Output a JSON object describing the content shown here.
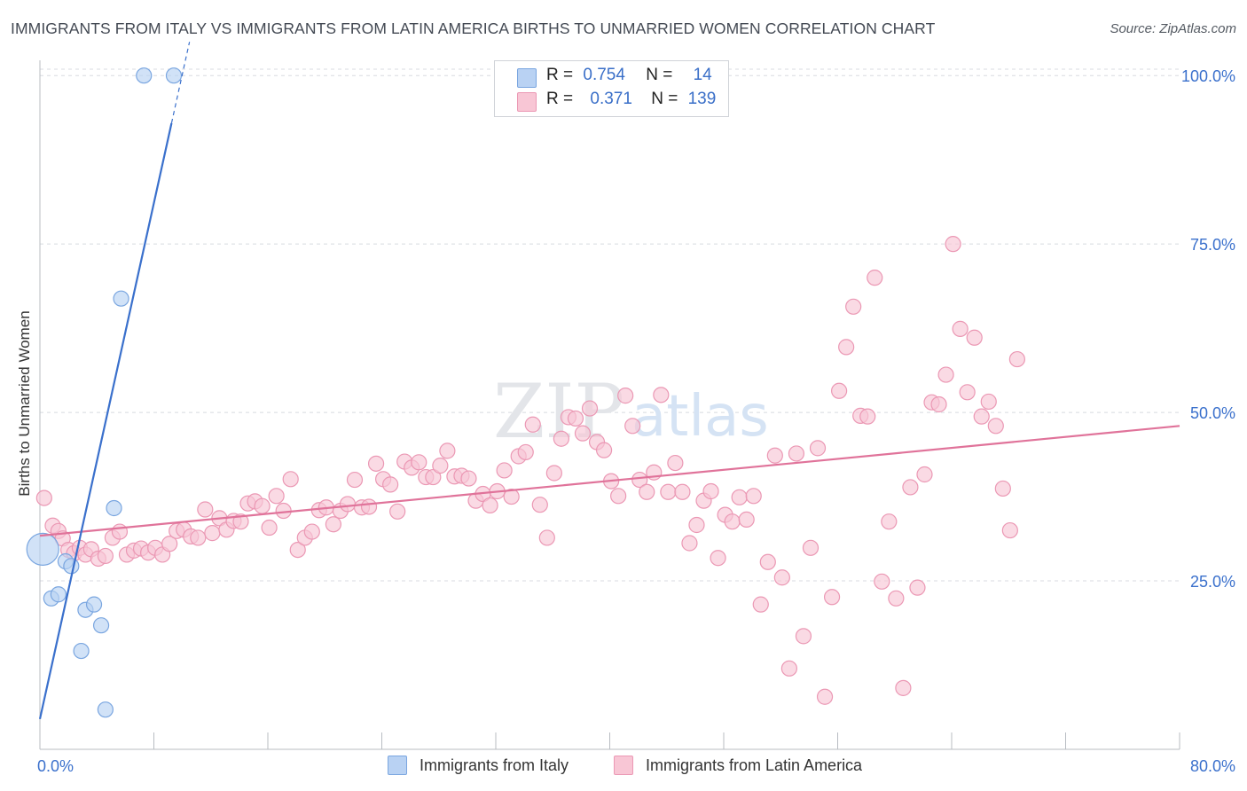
{
  "title": "IMMIGRANTS FROM ITALY VS IMMIGRANTS FROM LATIN AMERICA BIRTHS TO UNMARRIED WOMEN CORRELATION CHART",
  "source": "Source: ZipAtlas.com",
  "watermark": {
    "zip": "ZIP",
    "atlas": "atlas"
  },
  "legend": {
    "r_label": "R =",
    "n_label": "N =",
    "italy": {
      "r": "0.754",
      "n": "14",
      "name": "Immigrants from Italy"
    },
    "latin": {
      "r": "0.371",
      "n": "139",
      "name": "Immigrants from Latin America"
    }
  },
  "colors": {
    "italy_fill": "#b9d2f3",
    "italy_stroke": "#7aa6e0",
    "italy_line": "#3a70cc",
    "latin_fill": "#f8c6d5",
    "latin_stroke": "#eb98b4",
    "latin_line": "#e0739a",
    "axis_label": "#3a70cc",
    "grid": "#d8dbe0"
  },
  "chart_data": {
    "type": "scatter",
    "title": "IMMIGRANTS FROM ITALY VS IMMIGRANTS FROM LATIN AMERICA BIRTHS TO UNMARRIED WOMEN CORRELATION CHART",
    "xlabel": "",
    "ylabel": "Births to Unmarried Women",
    "xlim": [
      0,
      80
    ],
    "ylim": [
      0,
      102
    ],
    "x_tick_labels": [
      "0.0%",
      "80.0%"
    ],
    "y_ticks": [
      25,
      50,
      75,
      100
    ],
    "y_tick_labels": [
      "25.0%",
      "50.0%",
      "75.0%",
      "100.0%"
    ],
    "grid": true,
    "legend_position": "top-center",
    "series": [
      {
        "name": "Immigrants from Italy",
        "r": 0.754,
        "n": 14,
        "trend": {
          "x": [
            0,
            10.5
          ],
          "y": [
            4.5,
            105
          ]
        },
        "points": [
          {
            "x": 0.2,
            "y": 29.7,
            "big": true
          },
          {
            "x": 0.8,
            "y": 22.4
          },
          {
            "x": 1.3,
            "y": 23.0
          },
          {
            "x": 1.8,
            "y": 27.9
          },
          {
            "x": 2.2,
            "y": 27.2
          },
          {
            "x": 2.9,
            "y": 14.6
          },
          {
            "x": 3.2,
            "y": 20.7
          },
          {
            "x": 3.8,
            "y": 21.5
          },
          {
            "x": 4.3,
            "y": 18.4
          },
          {
            "x": 4.6,
            "y": 5.9
          },
          {
            "x": 5.2,
            "y": 35.8
          },
          {
            "x": 5.7,
            "y": 66.9
          },
          {
            "x": 7.3,
            "y": 100
          },
          {
            "x": 9.4,
            "y": 100
          }
        ]
      },
      {
        "name": "Immigrants from Latin America",
        "r": 0.371,
        "n": 139,
        "trend": {
          "x": [
            0,
            80
          ],
          "y": [
            31.7,
            48.0
          ]
        },
        "points": [
          {
            "x": 0.3,
            "y": 37.3
          },
          {
            "x": 0.9,
            "y": 33.2
          },
          {
            "x": 1.3,
            "y": 32.4
          },
          {
            "x": 1.6,
            "y": 31.3
          },
          {
            "x": 2.0,
            "y": 29.6
          },
          {
            "x": 2.4,
            "y": 29.1
          },
          {
            "x": 2.8,
            "y": 29.9
          },
          {
            "x": 3.2,
            "y": 28.9
          },
          {
            "x": 3.6,
            "y": 29.7
          },
          {
            "x": 4.1,
            "y": 28.3
          },
          {
            "x": 4.6,
            "y": 28.7
          },
          {
            "x": 5.1,
            "y": 31.4
          },
          {
            "x": 5.6,
            "y": 32.3
          },
          {
            "x": 6.1,
            "y": 28.9
          },
          {
            "x": 6.6,
            "y": 29.5
          },
          {
            "x": 7.1,
            "y": 29.8
          },
          {
            "x": 7.6,
            "y": 29.2
          },
          {
            "x": 8.1,
            "y": 29.9
          },
          {
            "x": 8.6,
            "y": 28.9
          },
          {
            "x": 9.1,
            "y": 30.5
          },
          {
            "x": 9.6,
            "y": 32.4
          },
          {
            "x": 10.1,
            "y": 32.6
          },
          {
            "x": 10.6,
            "y": 31.6
          },
          {
            "x": 11.1,
            "y": 31.4
          },
          {
            "x": 11.6,
            "y": 35.6
          },
          {
            "x": 12.1,
            "y": 32.1
          },
          {
            "x": 12.6,
            "y": 34.3
          },
          {
            "x": 13.1,
            "y": 32.6
          },
          {
            "x": 13.6,
            "y": 33.9
          },
          {
            "x": 14.1,
            "y": 33.8
          },
          {
            "x": 14.6,
            "y": 36.5
          },
          {
            "x": 15.1,
            "y": 36.8
          },
          {
            "x": 15.6,
            "y": 36.1
          },
          {
            "x": 16.1,
            "y": 32.9
          },
          {
            "x": 16.6,
            "y": 37.6
          },
          {
            "x": 17.1,
            "y": 35.4
          },
          {
            "x": 17.6,
            "y": 40.1
          },
          {
            "x": 18.1,
            "y": 29.6
          },
          {
            "x": 18.6,
            "y": 31.4
          },
          {
            "x": 19.1,
            "y": 32.3
          },
          {
            "x": 19.6,
            "y": 35.5
          },
          {
            "x": 20.1,
            "y": 35.9
          },
          {
            "x": 20.6,
            "y": 33.4
          },
          {
            "x": 21.1,
            "y": 35.4
          },
          {
            "x": 21.6,
            "y": 36.4
          },
          {
            "x": 22.1,
            "y": 40.0
          },
          {
            "x": 22.6,
            "y": 35.9
          },
          {
            "x": 23.1,
            "y": 36.0
          },
          {
            "x": 23.6,
            "y": 42.4
          },
          {
            "x": 24.1,
            "y": 40.1
          },
          {
            "x": 24.6,
            "y": 39.3
          },
          {
            "x": 25.1,
            "y": 35.3
          },
          {
            "x": 25.6,
            "y": 42.7
          },
          {
            "x": 26.1,
            "y": 41.8
          },
          {
            "x": 26.6,
            "y": 42.6
          },
          {
            "x": 27.1,
            "y": 40.4
          },
          {
            "x": 27.6,
            "y": 40.4
          },
          {
            "x": 28.1,
            "y": 42.1
          },
          {
            "x": 28.6,
            "y": 44.3
          },
          {
            "x": 29.1,
            "y": 40.5
          },
          {
            "x": 29.6,
            "y": 40.6
          },
          {
            "x": 30.1,
            "y": 40.2
          },
          {
            "x": 30.6,
            "y": 36.9
          },
          {
            "x": 31.1,
            "y": 37.9
          },
          {
            "x": 31.6,
            "y": 36.2
          },
          {
            "x": 32.1,
            "y": 38.3
          },
          {
            "x": 32.6,
            "y": 41.4
          },
          {
            "x": 33.1,
            "y": 37.5
          },
          {
            "x": 33.6,
            "y": 43.5
          },
          {
            "x": 34.1,
            "y": 44.1
          },
          {
            "x": 34.6,
            "y": 48.2
          },
          {
            "x": 35.1,
            "y": 36.3
          },
          {
            "x": 35.6,
            "y": 31.4
          },
          {
            "x": 36.1,
            "y": 41.0
          },
          {
            "x": 36.6,
            "y": 46.1
          },
          {
            "x": 37.1,
            "y": 49.3
          },
          {
            "x": 37.6,
            "y": 49.1
          },
          {
            "x": 38.1,
            "y": 46.9
          },
          {
            "x": 38.6,
            "y": 50.6
          },
          {
            "x": 39.1,
            "y": 45.6
          },
          {
            "x": 39.6,
            "y": 44.4
          },
          {
            "x": 40.1,
            "y": 39.8
          },
          {
            "x": 40.6,
            "y": 37.6
          },
          {
            "x": 41.1,
            "y": 52.5
          },
          {
            "x": 41.6,
            "y": 48.0
          },
          {
            "x": 42.1,
            "y": 40.0
          },
          {
            "x": 42.6,
            "y": 38.2
          },
          {
            "x": 43.1,
            "y": 41.1
          },
          {
            "x": 43.6,
            "y": 52.6
          },
          {
            "x": 44.1,
            "y": 38.2
          },
          {
            "x": 44.6,
            "y": 42.5
          },
          {
            "x": 45.1,
            "y": 38.2
          },
          {
            "x": 45.6,
            "y": 30.6
          },
          {
            "x": 46.1,
            "y": 33.3
          },
          {
            "x": 46.6,
            "y": 36.9
          },
          {
            "x": 47.1,
            "y": 38.3
          },
          {
            "x": 47.6,
            "y": 28.4
          },
          {
            "x": 48.1,
            "y": 34.8
          },
          {
            "x": 48.6,
            "y": 33.8
          },
          {
            "x": 49.1,
            "y": 37.4
          },
          {
            "x": 49.6,
            "y": 34.1
          },
          {
            "x": 50.1,
            "y": 37.6
          },
          {
            "x": 50.6,
            "y": 21.5
          },
          {
            "x": 51.1,
            "y": 27.8
          },
          {
            "x": 51.6,
            "y": 43.6
          },
          {
            "x": 52.1,
            "y": 25.5
          },
          {
            "x": 52.6,
            "y": 12.0
          },
          {
            "x": 53.1,
            "y": 43.9
          },
          {
            "x": 53.6,
            "y": 16.8
          },
          {
            "x": 54.1,
            "y": 29.9
          },
          {
            "x": 54.6,
            "y": 44.7
          },
          {
            "x": 55.1,
            "y": 7.8
          },
          {
            "x": 55.6,
            "y": 22.6
          },
          {
            "x": 56.1,
            "y": 53.2
          },
          {
            "x": 56.6,
            "y": 59.7
          },
          {
            "x": 57.1,
            "y": 65.7
          },
          {
            "x": 57.6,
            "y": 49.5
          },
          {
            "x": 58.1,
            "y": 49.4
          },
          {
            "x": 58.6,
            "y": 70.0
          },
          {
            "x": 59.1,
            "y": 24.9
          },
          {
            "x": 59.6,
            "y": 33.8
          },
          {
            "x": 60.1,
            "y": 22.4
          },
          {
            "x": 60.6,
            "y": 9.1
          },
          {
            "x": 61.1,
            "y": 38.9
          },
          {
            "x": 61.6,
            "y": 24.0
          },
          {
            "x": 62.1,
            "y": 40.8
          },
          {
            "x": 62.6,
            "y": 51.5
          },
          {
            "x": 63.1,
            "y": 51.2
          },
          {
            "x": 63.6,
            "y": 55.6
          },
          {
            "x": 64.1,
            "y": 75.0
          },
          {
            "x": 64.6,
            "y": 62.4
          },
          {
            "x": 65.1,
            "y": 53.0
          },
          {
            "x": 65.6,
            "y": 61.1
          },
          {
            "x": 66.1,
            "y": 49.4
          },
          {
            "x": 66.6,
            "y": 51.6
          },
          {
            "x": 67.1,
            "y": 48.0
          },
          {
            "x": 67.6,
            "y": 38.7
          },
          {
            "x": 68.1,
            "y": 32.5
          },
          {
            "x": 68.6,
            "y": 57.9
          }
        ]
      }
    ]
  }
}
